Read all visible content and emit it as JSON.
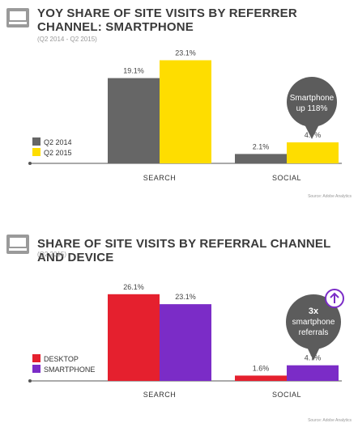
{
  "colors": {
    "q2_2014": "#666666",
    "q2_2015": "#fedd00",
    "desktop": "#e5202e",
    "smartphone": "#7b2cc7",
    "bubble": "#5c5c5c",
    "axis": "#555555",
    "icon": "#9a9a9a"
  },
  "panel1": {
    "title": "YOY SHARE OF SITE VISITS BY REFERRER CHANNEL: SMARTPHONE",
    "subtitle": "(Q2 2014 - Q2 2015)",
    "callout": {
      "line1": "Smartphone",
      "line2": "up 118%"
    },
    "source": "Source: Adobe Analytics"
  },
  "panel2": {
    "title": "SHARE OF SITE VISITS BY REFERRAL CHANNEL AND DEVICE",
    "subtitle": "(Q2 2015)",
    "callout": {
      "line1": "3x",
      "line2": "smartphone",
      "line3": "referrals",
      "icon": "up-arrow-icon"
    },
    "source": "Source: Adobe Analytics"
  },
  "chart_data": [
    {
      "type": "bar",
      "title": "YOY SHARE OF SITE VISITS BY REFERRER CHANNEL: SMARTPHONE",
      "subtitle": "(Q2 2014 - Q2 2015)",
      "categories": [
        "SEARCH",
        "SOCIAL"
      ],
      "series": [
        {
          "name": "Q2 2014",
          "values": [
            19.1,
            2.1
          ],
          "labels": [
            "19.1%",
            "2.1%"
          ],
          "color": "#666666"
        },
        {
          "name": "Q2 2015",
          "values": [
            23.1,
            4.7
          ],
          "labels": [
            "23.1%",
            "4.7%"
          ],
          "color": "#fedd00"
        }
      ],
      "ylim": [
        0,
        25
      ],
      "grid": false,
      "legend": "left"
    },
    {
      "type": "bar",
      "title": "SHARE OF SITE VISITS BY REFERRAL CHANNEL AND DEVICE",
      "subtitle": "(Q2 2015)",
      "categories": [
        "SEARCH",
        "SOCIAL"
      ],
      "series": [
        {
          "name": "DESKTOP",
          "values": [
            26.1,
            1.6
          ],
          "labels": [
            "26.1%",
            "1.6%"
          ],
          "color": "#e5202e"
        },
        {
          "name": "SMARTPHONE",
          "values": [
            23.1,
            4.7
          ],
          "labels": [
            "23.1%",
            "4.7%"
          ],
          "color": "#7b2cc7"
        }
      ],
      "ylim": [
        0,
        28
      ],
      "grid": false,
      "legend": "left"
    }
  ]
}
